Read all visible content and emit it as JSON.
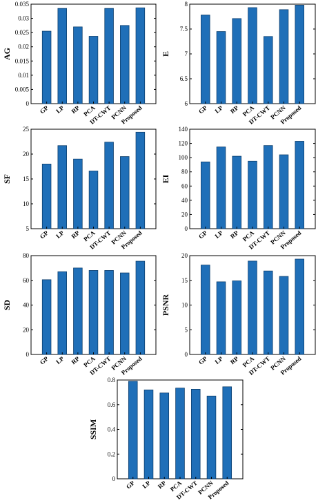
{
  "chart_data": [
    {
      "type": "bar",
      "ylabel": "AG",
      "categories": [
        "GP",
        "LP",
        "RP",
        "PCA",
        "DT-CWT",
        "PCNN",
        "Proposed"
      ],
      "values": [
        0.0255,
        0.0335,
        0.027,
        0.0237,
        0.0335,
        0.0275,
        0.0337
      ],
      "ylim": [
        0,
        0.035
      ],
      "yticks": [
        0,
        0.005,
        0.01,
        0.015,
        0.02,
        0.025,
        0.03,
        0.035
      ],
      "ytick_labels": [
        "0",
        "0.005",
        "0.01",
        "0.015",
        "0.02",
        "0.025",
        "0.03",
        "0.035"
      ],
      "grid": false
    },
    {
      "type": "bar",
      "ylabel": "E",
      "categories": [
        "GP",
        "LP",
        "RP",
        "PCA",
        "DT-CWT",
        "PCNN",
        "Proposed"
      ],
      "values": [
        7.78,
        7.45,
        7.71,
        7.93,
        7.35,
        7.89,
        7.98
      ],
      "ylim": [
        6,
        8
      ],
      "yticks": [
        6,
        6.5,
        7,
        7.5,
        8
      ],
      "ytick_labels": [
        "6",
        "6.5",
        "7",
        "7.5",
        "8"
      ],
      "grid": false
    },
    {
      "type": "bar",
      "ylabel": "SF",
      "categories": [
        "GP",
        "LP",
        "RP",
        "PCA",
        "DT-CWT",
        "PCNN",
        "Proposed"
      ],
      "values": [
        18.0,
        21.7,
        19.0,
        16.6,
        22.4,
        19.5,
        24.4
      ],
      "ylim": [
        5,
        25
      ],
      "yticks": [
        5,
        10,
        15,
        20,
        25
      ],
      "ytick_labels": [
        "5",
        "10",
        "15",
        "20",
        "25"
      ],
      "grid": false
    },
    {
      "type": "bar",
      "ylabel": "EI",
      "categories": [
        "GP",
        "LP",
        "RP",
        "PCA",
        "DT-CWT",
        "PCNN",
        "Proposed"
      ],
      "values": [
        94,
        115,
        102,
        95,
        117,
        104,
        123
      ],
      "ylim": [
        0,
        140
      ],
      "yticks": [
        0,
        20,
        40,
        60,
        80,
        100,
        120,
        140
      ],
      "ytick_labels": [
        "0",
        "20",
        "40",
        "60",
        "80",
        "100",
        "120",
        "140"
      ],
      "grid": false
    },
    {
      "type": "bar",
      "ylabel": "SD",
      "categories": [
        "GP",
        "LP",
        "RP",
        "PCA",
        "DT-CWT",
        "PCNN",
        "Proposed"
      ],
      "values": [
        60.5,
        67,
        70,
        68,
        68,
        66,
        75.5
      ],
      "ylim": [
        0,
        80
      ],
      "yticks": [
        0,
        20,
        40,
        60,
        80
      ],
      "ytick_labels": [
        "0",
        "20",
        "40",
        "60",
        "80"
      ],
      "grid": false
    },
    {
      "type": "bar",
      "ylabel": "PSNR",
      "categories": [
        "GP",
        "LP",
        "RP",
        "PCA",
        "DT-CWT",
        "PCNN",
        "Proposed"
      ],
      "values": [
        18.1,
        14.7,
        14.9,
        18.9,
        16.9,
        15.8,
        19.3
      ],
      "ylim": [
        0,
        20
      ],
      "yticks": [
        0,
        5,
        10,
        15,
        20
      ],
      "ytick_labels": [
        "0",
        "5",
        "10",
        "15",
        "20"
      ],
      "grid": false
    },
    {
      "type": "bar",
      "ylabel": "SSIM",
      "categories": [
        "GP",
        "LP",
        "RP",
        "PCA",
        "DT-CWT",
        "PCNN",
        "Proposed"
      ],
      "values": [
        0.79,
        0.72,
        0.695,
        0.735,
        0.725,
        0.67,
        0.745
      ],
      "ylim": [
        0,
        0.8
      ],
      "yticks": [
        0,
        0.2,
        0.4,
        0.6,
        0.8
      ],
      "ytick_labels": [
        "0",
        "0.2",
        "0.4",
        "0.6",
        "0.8"
      ],
      "grid": false
    }
  ],
  "colors": {
    "bar": "#1f6fb8",
    "bar_edge": "#0d3f6e",
    "axis": "#000000"
  }
}
